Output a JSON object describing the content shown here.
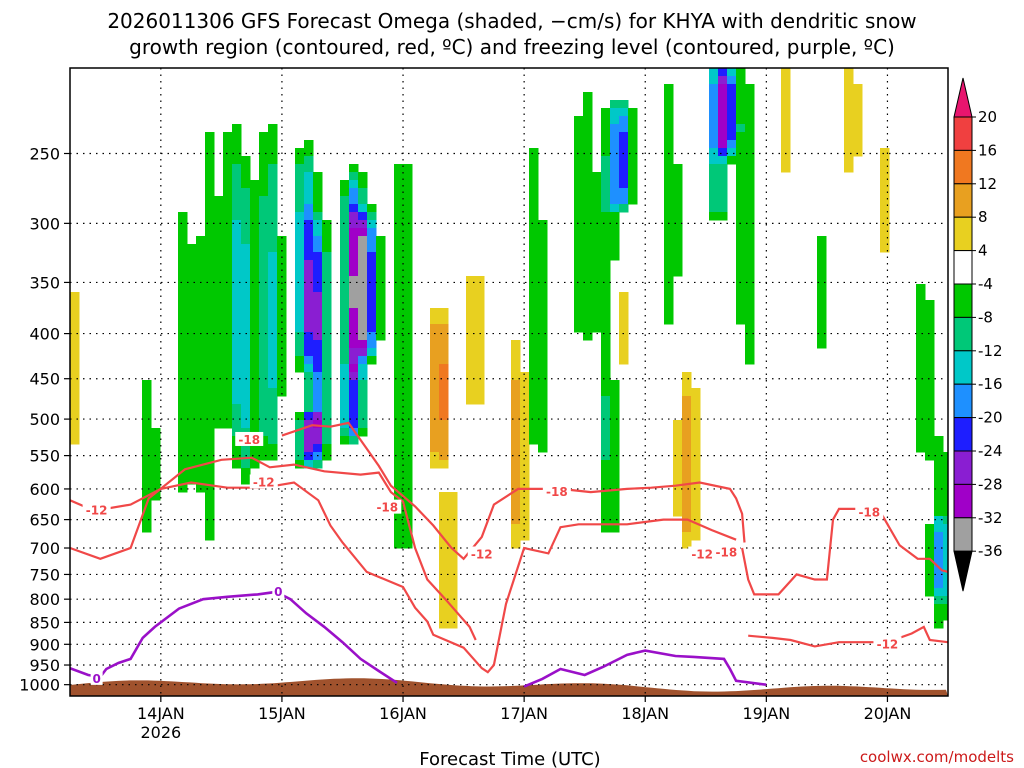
{
  "chart_data": {
    "type": "heatmap",
    "title_line1": "2026011306 GFS Forecast Omega (shaded, −cm/s) for KHYA with dendritic snow",
    "title_line2": "growth region (contoured, red, ºC) and freezing level (contoured, purple, ºC)",
    "xlabel": "Forecast Time (UTC)",
    "ylabel": "",
    "credit": "coolwx.com/modelts",
    "x_ticks": [
      {
        "label": "14JAN",
        "t": 0.75,
        "sub": "2026"
      },
      {
        "label": "15JAN",
        "t": 1.75
      },
      {
        "label": "16JAN",
        "t": 2.75
      },
      {
        "label": "17JAN",
        "t": 3.75
      },
      {
        "label": "18JAN",
        "t": 4.75
      },
      {
        "label": "19JAN",
        "t": 5.75
      },
      {
        "label": "20JAN",
        "t": 6.75
      }
    ],
    "x_range_days": [
      0,
      7.25
    ],
    "y_range_hpa": [
      1030,
      200
    ],
    "y_ticks": [
      250,
      300,
      350,
      400,
      450,
      500,
      550,
      600,
      650,
      700,
      750,
      800,
      850,
      900,
      950,
      1000
    ],
    "grid": "dotted",
    "colorbar": {
      "ticks": [
        "20",
        "16",
        "12",
        "8",
        "4",
        "-4",
        "-8",
        "-12",
        "-16",
        "-20",
        "-24",
        "-28",
        "-32",
        "-36"
      ],
      "bins": [
        {
          "lo": 20,
          "hi": 24,
          "color": "#e8156e"
        },
        {
          "lo": 16,
          "hi": 20,
          "color": "#f04040"
        },
        {
          "lo": 12,
          "hi": 16,
          "color": "#f07820"
        },
        {
          "lo": 8,
          "hi": 12,
          "color": "#e8a020"
        },
        {
          "lo": 4,
          "hi": 8,
          "color": "#e8d020"
        },
        {
          "lo": -4,
          "hi": 4,
          "color": "#ffffff"
        },
        {
          "lo": -8,
          "hi": -4,
          "color": "#00c800"
        },
        {
          "lo": -12,
          "hi": -8,
          "color": "#00c878"
        },
        {
          "lo": -16,
          "hi": -12,
          "color": "#00c8c8"
        },
        {
          "lo": -20,
          "hi": -16,
          "color": "#1e90ff"
        },
        {
          "lo": -24,
          "hi": -20,
          "color": "#1e1eff"
        },
        {
          "lo": -28,
          "hi": -24,
          "color": "#8a1ed2"
        },
        {
          "lo": -32,
          "hi": -28,
          "color": "#a000c8"
        },
        {
          "lo": -36,
          "hi": -32,
          "color": "#a0a0a0"
        },
        {
          "lo": -40,
          "hi": -36,
          "color": "#000000"
        }
      ]
    },
    "omega_features": [
      {
        "t": 0.05,
        "p0": 330,
        "p1": 560,
        "val": 5
      },
      {
        "t": 0.65,
        "p0": 430,
        "p1": 700,
        "val": -6
      },
      {
        "t": 0.95,
        "p0": 250,
        "p1": 650,
        "val": -6
      },
      {
        "t": 1.15,
        "p0": 200,
        "p1": 720,
        "val": -7
      },
      {
        "t": 1.35,
        "p0": 220,
        "p1": 520,
        "val": -9
      },
      {
        "t": 1.45,
        "p0": 260,
        "p1": 600,
        "val": -11
      },
      {
        "t": 1.65,
        "p0": 230,
        "p1": 560,
        "val": -13
      },
      {
        "t": 1.95,
        "p0": 250,
        "p1": 430,
        "val": -18
      },
      {
        "t": 2.05,
        "p0": 300,
        "p1": 550,
        "val": -19
      },
      {
        "t": 1.98,
        "p0": 500,
        "p1": 560,
        "val": -21
      },
      {
        "t": 2.35,
        "p0": 270,
        "p1": 440,
        "val": -27
      },
      {
        "t": 2.45,
        "p0": 300,
        "p1": 420,
        "val": -23
      },
      {
        "t": 2.33,
        "p0": 440,
        "p1": 520,
        "val": -22
      },
      {
        "t": 2.75,
        "p0": 200,
        "p1": 760,
        "val": -7
      },
      {
        "t": 3.05,
        "p0": 380,
        "p1": 560,
        "val": 14
      },
      {
        "t": 3.12,
        "p0": 560,
        "p1": 900,
        "val": 6
      },
      {
        "t": 3.35,
        "p0": 340,
        "p1": 480,
        "val": 8
      },
      {
        "t": 3.7,
        "p0": 400,
        "p1": 700,
        "val": 10
      },
      {
        "t": 3.85,
        "p0": 200,
        "p1": 650,
        "val": -6
      },
      {
        "t": 4.25,
        "p0": 200,
        "p1": 420,
        "val": -7
      },
      {
        "t": 4.45,
        "p0": 210,
        "p1": 700,
        "val": -9
      },
      {
        "t": 4.55,
        "p0": 230,
        "p1": 280,
        "val": -21
      },
      {
        "t": 4.55,
        "p0": 330,
        "p1": 460,
        "val": 6
      },
      {
        "t": 4.95,
        "p0": 200,
        "p1": 400,
        "val": -7
      },
      {
        "t": 5.1,
        "p0": 440,
        "p1": 700,
        "val": 10
      },
      {
        "t": 5.35,
        "p0": 200,
        "p1": 290,
        "val": -14
      },
      {
        "t": 5.42,
        "p0": 210,
        "p1": 240,
        "val": -23
      },
      {
        "t": 5.6,
        "p0": 200,
        "p1": 440,
        "val": -7
      },
      {
        "t": 5.9,
        "p0": 200,
        "p1": 260,
        "val": 5
      },
      {
        "t": 6.2,
        "p0": 310,
        "p1": 420,
        "val": -6
      },
      {
        "t": 6.45,
        "p0": 200,
        "p1": 260,
        "val": 6
      },
      {
        "t": 6.7,
        "p0": 240,
        "p1": 330,
        "val": 5
      },
      {
        "t": 7.05,
        "p0": 330,
        "p1": 560,
        "val": -6
      },
      {
        "t": 7.2,
        "p0": 500,
        "p1": 900,
        "val": -7
      },
      {
        "t": 7.2,
        "p0": 650,
        "p1": 800,
        "val": -13
      }
    ],
    "dendritic_contours": [
      {
        "level": -12,
        "label": "-12",
        "points": [
          [
            0,
            618
          ],
          [
            0.2,
            635
          ],
          [
            0.5,
            625
          ],
          [
            0.75,
            600
          ],
          [
            1.0,
            590
          ],
          [
            1.3,
            598
          ],
          [
            1.6,
            598
          ],
          [
            1.85,
            590
          ],
          [
            2.05,
            618
          ],
          [
            2.15,
            660
          ],
          [
            2.25,
            690
          ],
          [
            2.45,
            745
          ],
          [
            2.75,
            775
          ],
          [
            2.85,
            818
          ],
          [
            2.95,
            848
          ],
          [
            3.0,
            878
          ],
          [
            3.25,
            908
          ],
          [
            3.4,
            958
          ],
          [
            3.45,
            968
          ],
          [
            3.5,
            950
          ],
          [
            3.6,
            810
          ],
          [
            3.75,
            700
          ],
          [
            3.95,
            710
          ],
          [
            4.05,
            663
          ],
          [
            4.2,
            658
          ],
          [
            4.6,
            658
          ],
          [
            4.9,
            650
          ],
          [
            5.1,
            650
          ],
          [
            5.3,
            668
          ],
          [
            5.5,
            685
          ]
        ]
      },
      {
        "level": -12,
        "label": "-12",
        "points": [
          [
            0,
            700
          ],
          [
            0.25,
            720
          ],
          [
            0.5,
            700
          ],
          [
            0.65,
            615
          ],
          [
            0.95,
            570
          ],
          [
            1.25,
            556
          ],
          [
            1.5,
            553
          ],
          [
            1.65,
            567
          ],
          [
            1.85,
            563
          ],
          [
            2.1,
            573
          ],
          [
            2.4,
            578
          ],
          [
            2.55,
            575
          ],
          [
            2.65,
            605
          ],
          [
            2.75,
            620
          ],
          [
            2.85,
            700
          ],
          [
            2.95,
            760
          ],
          [
            3.1,
            800
          ],
          [
            3.3,
            860
          ],
          [
            3.35,
            890
          ]
        ]
      },
      {
        "level": -18,
        "label": "-18",
        "points": [
          [
            1.75,
            522
          ],
          [
            2.0,
            508
          ],
          [
            2.15,
            510
          ],
          [
            2.3,
            505
          ],
          [
            2.45,
            540
          ],
          [
            2.55,
            565
          ],
          [
            2.65,
            595
          ],
          [
            2.85,
            628
          ],
          [
            3.0,
            660
          ],
          [
            3.15,
            700
          ],
          [
            3.25,
            720
          ],
          [
            3.4,
            680
          ],
          [
            3.5,
            625
          ],
          [
            3.7,
            600
          ],
          [
            4.05,
            600
          ],
          [
            4.3,
            605
          ],
          [
            4.6,
            600
          ],
          [
            4.8,
            598
          ],
          [
            5.0,
            595
          ],
          [
            5.2,
            590
          ],
          [
            5.45,
            600
          ],
          [
            5.5,
            615
          ],
          [
            5.55,
            640
          ],
          [
            5.57,
            690
          ]
        ]
      },
      {
        "level": -18,
        "label": "-18",
        "points": [
          [
            5.55,
            700
          ],
          [
            5.6,
            760
          ],
          [
            5.65,
            790
          ],
          [
            5.85,
            790
          ],
          [
            6.0,
            750
          ],
          [
            6.15,
            760
          ],
          [
            6.25,
            760
          ],
          [
            6.3,
            650
          ],
          [
            6.35,
            632
          ],
          [
            6.55,
            632
          ],
          [
            6.7,
            640
          ],
          [
            6.85,
            695
          ],
          [
            7.0,
            720
          ],
          [
            7.1,
            720
          ],
          [
            7.2,
            742
          ],
          [
            7.25,
            745
          ]
        ]
      },
      {
        "level": -12,
        "label": "-12",
        "points": [
          [
            5.6,
            880
          ],
          [
            5.8,
            885
          ],
          [
            5.95,
            890
          ],
          [
            6.15,
            905
          ],
          [
            6.35,
            895
          ],
          [
            6.55,
            895
          ],
          [
            6.75,
            895
          ],
          [
            6.95,
            875
          ],
          [
            7.05,
            860
          ],
          [
            7.1,
            890
          ],
          [
            7.25,
            895
          ]
        ]
      }
    ],
    "dendritic_labels": [
      {
        "label": "-18",
        "t": 1.48,
        "p": 528
      },
      {
        "label": "-12",
        "t": 0.22,
        "p": 635
      },
      {
        "label": "-12",
        "t": 1.6,
        "p": 590
      },
      {
        "label": "-18",
        "t": 2.62,
        "p": 630
      },
      {
        "label": "-12",
        "t": 3.4,
        "p": 712
      },
      {
        "label": "-18",
        "t": 4.02,
        "p": 605
      },
      {
        "label": "-12",
        "t": 5.22,
        "p": 712
      },
      {
        "label": "-18",
        "t": 5.42,
        "p": 708
      },
      {
        "label": "-18",
        "t": 6.6,
        "p": 638
      },
      {
        "label": "-12",
        "t": 6.75,
        "p": 900
      }
    ],
    "freezing_contours": [
      {
        "level": 0,
        "label": "0",
        "points": [
          [
            0.0,
            958
          ],
          [
            0.15,
            975
          ],
          [
            0.25,
            980
          ],
          [
            0.3,
            960
          ],
          [
            0.4,
            945
          ],
          [
            0.5,
            935
          ],
          [
            0.6,
            885
          ],
          [
            0.7,
            860
          ],
          [
            0.9,
            820
          ],
          [
            1.1,
            800
          ],
          [
            1.3,
            795
          ],
          [
            1.55,
            790
          ],
          [
            1.7,
            785
          ],
          [
            1.82,
            800
          ],
          [
            1.95,
            830
          ],
          [
            2.1,
            860
          ],
          [
            2.25,
            895
          ],
          [
            2.4,
            935
          ],
          [
            2.55,
            965
          ],
          [
            2.7,
            995
          ]
        ]
      },
      {
        "level": 0,
        "label": "0",
        "points": [
          [
            3.75,
            1005
          ],
          [
            3.9,
            985
          ],
          [
            4.05,
            960
          ],
          [
            4.25,
            975
          ],
          [
            4.4,
            955
          ],
          [
            4.6,
            925
          ],
          [
            4.75,
            915
          ],
          [
            5.0,
            928
          ],
          [
            5.15,
            930
          ],
          [
            5.4,
            935
          ],
          [
            5.45,
            960
          ],
          [
            5.5,
            990
          ],
          [
            5.75,
            1000
          ]
        ]
      }
    ],
    "freezing_labels": [
      {
        "label": "0",
        "t": 1.72,
        "p": 785
      },
      {
        "label": "0",
        "t": 0.22,
        "p": 985
      }
    ]
  }
}
